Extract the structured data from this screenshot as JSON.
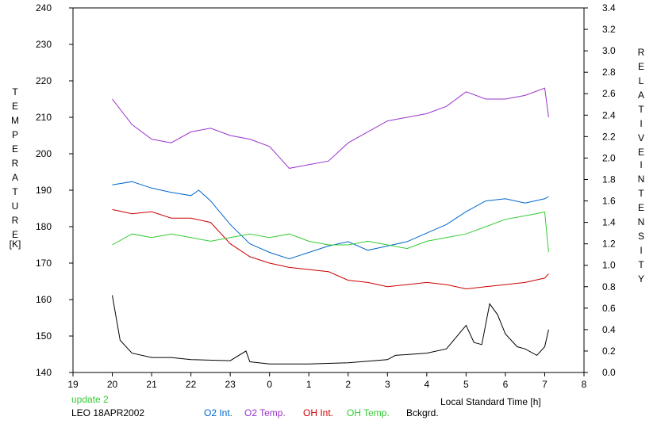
{
  "chart_data": {
    "type": "line",
    "xlabel": "Local Standard Time [h]",
    "ylabel_left_letters": [
      "T",
      "E",
      "M",
      "P",
      "E",
      "R",
      "A",
      "T",
      "U",
      "R",
      "E",
      "[K]"
    ],
    "ylabel_right_letters": [
      "R",
      "E",
      "L",
      "A",
      "T",
      "I",
      "V",
      "E",
      "I",
      "N",
      "T",
      "E",
      "N",
      "S",
      "I",
      "T",
      "Y"
    ],
    "x_ticks": [
      "19",
      "20",
      "21",
      "22",
      "23",
      "0",
      "1",
      "2",
      "3",
      "4",
      "5",
      "6",
      "7",
      "8"
    ],
    "x_tick_positions": [
      19,
      20,
      21,
      22,
      23,
      24,
      25,
      26,
      27,
      28,
      29,
      30,
      31,
      32
    ],
    "xlim": [
      19,
      32
    ],
    "ylim_left": [
      140,
      240
    ],
    "ylim_right": [
      0,
      3.4
    ],
    "yticks_left": [
      "140",
      "150",
      "160",
      "170",
      "180",
      "190",
      "200",
      "210",
      "220",
      "230",
      "240"
    ],
    "yticks_right": [
      "0.0",
      "0.2",
      "0.4",
      "0.6",
      "0.8",
      "1.0",
      "1.2",
      "1.4",
      "1.6",
      "1.8",
      "2.0",
      "2.2",
      "2.4",
      "2.6",
      "2.8",
      "3.0",
      "3.2",
      "3.4"
    ],
    "grid": false,
    "legend_position": "bottom",
    "series": [
      {
        "name": "O2 Int.",
        "axis": "right",
        "color": "#0066cc",
        "x": [
          20.0,
          20.5,
          21.0,
          21.5,
          22.0,
          22.2,
          22.5,
          23.0,
          23.5,
          24.0,
          24.5,
          25.0,
          25.5,
          26.0,
          26.5,
          27.0,
          27.5,
          28.0,
          28.5,
          29.0,
          29.5,
          30.0,
          30.5,
          31.0,
          31.1
        ],
        "y": [
          1.75,
          1.78,
          1.72,
          1.68,
          1.65,
          1.7,
          1.6,
          1.38,
          1.2,
          1.12,
          1.06,
          1.12,
          1.18,
          1.22,
          1.14,
          1.18,
          1.22,
          1.3,
          1.38,
          1.5,
          1.6,
          1.62,
          1.58,
          1.62,
          1.64
        ]
      },
      {
        "name": "O2 Temp.",
        "axis": "left",
        "color": "#9933cc",
        "x": [
          20.0,
          20.5,
          21.0,
          21.5,
          22.0,
          22.5,
          23.0,
          23.5,
          24.0,
          24.5,
          25.0,
          25.5,
          26.0,
          26.5,
          27.0,
          27.5,
          28.0,
          28.5,
          29.0,
          29.5,
          30.0,
          30.5,
          31.0,
          31.1
        ],
        "y": [
          215,
          208,
          204,
          203,
          206,
          207,
          205,
          204,
          202,
          196,
          197,
          198,
          203,
          206,
          209,
          210,
          211,
          213,
          217,
          215,
          215,
          216,
          218,
          210
        ]
      },
      {
        "name": "OH Int.",
        "axis": "right",
        "color": "#cc0000",
        "x": [
          20.0,
          20.5,
          21.0,
          21.5,
          22.0,
          22.5,
          23.0,
          23.5,
          24.0,
          24.5,
          25.0,
          25.5,
          26.0,
          26.5,
          27.0,
          27.5,
          28.0,
          28.5,
          29.0,
          29.5,
          30.0,
          30.5,
          31.0,
          31.1
        ],
        "y": [
          1.52,
          1.48,
          1.5,
          1.44,
          1.44,
          1.4,
          1.2,
          1.08,
          1.02,
          0.98,
          0.96,
          0.94,
          0.86,
          0.84,
          0.8,
          0.82,
          0.84,
          0.82,
          0.78,
          0.8,
          0.82,
          0.84,
          0.88,
          0.92
        ]
      },
      {
        "name": "OH Temp.",
        "axis": "left",
        "color": "#33cc33",
        "x": [
          20.0,
          20.5,
          21.0,
          21.5,
          22.0,
          22.5,
          23.0,
          23.5,
          24.0,
          24.5,
          25.0,
          25.5,
          26.0,
          26.5,
          27.0,
          27.5,
          28.0,
          28.5,
          29.0,
          29.5,
          30.0,
          30.5,
          31.0,
          31.1
        ],
        "y": [
          175,
          178,
          177,
          178,
          177,
          176,
          177,
          178,
          177,
          178,
          176,
          175,
          175,
          176,
          175,
          174,
          176,
          177,
          178,
          180,
          182,
          183,
          184,
          173
        ]
      },
      {
        "name": "Bckgrd.",
        "axis": "right",
        "color": "#000000",
        "x": [
          20.0,
          20.2,
          20.5,
          21.0,
          21.5,
          22.0,
          23.0,
          23.4,
          23.5,
          24.0,
          25.0,
          26.0,
          27.0,
          27.2,
          28.0,
          28.5,
          29.0,
          29.2,
          29.4,
          29.6,
          29.8,
          30.0,
          30.3,
          30.5,
          30.8,
          31.0,
          31.1
        ],
        "y": [
          0.72,
          0.3,
          0.18,
          0.14,
          0.14,
          0.12,
          0.11,
          0.2,
          0.1,
          0.08,
          0.08,
          0.09,
          0.12,
          0.16,
          0.18,
          0.22,
          0.44,
          0.28,
          0.26,
          0.64,
          0.54,
          0.36,
          0.24,
          0.22,
          0.16,
          0.24,
          0.4
        ]
      }
    ]
  },
  "footer": {
    "update_text": "update 2",
    "update_color": "#33cc33",
    "station_label": "LEO 18APR2002"
  }
}
